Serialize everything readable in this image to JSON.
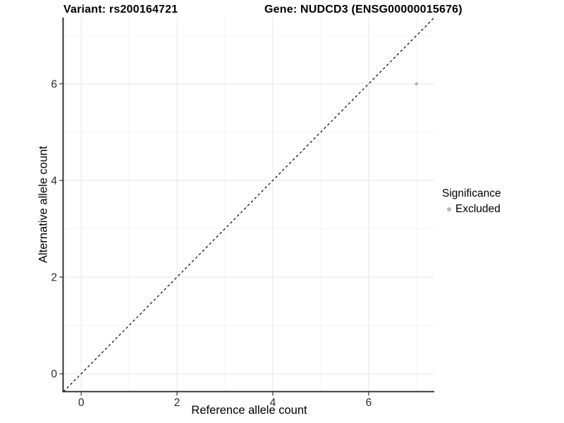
{
  "header": {
    "variant_title": "Variant: rs200164721",
    "gene_title": "Gene: NUDCD3 (ENSG00000015676)"
  },
  "legend": {
    "title": "Significance",
    "items": [
      {
        "label": "Excluded",
        "color": "#b8b8b8"
      }
    ]
  },
  "chart_data": {
    "type": "scatter",
    "title": "Variant: rs200164721   Gene: NUDCD3 (ENSG00000015676)",
    "xlabel": "Reference allele count",
    "ylabel": "Alternative allele count",
    "xlim": [
      -0.37,
      7.37
    ],
    "ylim": [
      -0.37,
      7.37
    ],
    "x_ticks": [
      0,
      2,
      4,
      6
    ],
    "y_ticks": [
      0,
      2,
      4,
      6
    ],
    "grid": true,
    "minor_grid_step": 1,
    "legend_position": "right",
    "reference_line": {
      "type": "identity",
      "slope": 1,
      "intercept": 0,
      "style": "dashed",
      "color": "#000000"
    },
    "series": [
      {
        "name": "Excluded",
        "color": "#b8b8b8",
        "points": [
          {
            "x": 7,
            "y": 6
          }
        ]
      }
    ],
    "style": {
      "panel_bg": "#ffffff",
      "major_grid_color": "#e8e8e8",
      "minor_grid_color": "#f3f3f3",
      "axis_line_color": "#1f1f1f",
      "tick_color": "#333333",
      "tick_label_color": "#2b2b2b"
    }
  }
}
